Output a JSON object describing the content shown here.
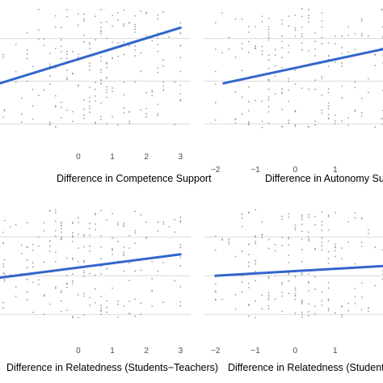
{
  "figure": {
    "background": "#ffffff",
    "grid_color": "#d9d9d9",
    "point_color": "#9e9e9e",
    "line_color": "#3366cc"
  },
  "chart_data": [
    {
      "type": "scatter",
      "id": "competence",
      "xlabel": "Difference in Competence Support",
      "xlim": [
        -2.3,
        3.3
      ],
      "ylim": [
        -1.6,
        1.9
      ],
      "x_ticks": [
        0,
        1,
        2,
        3
      ],
      "x_tick_labels": [
        "0",
        "1",
        "2",
        "3"
      ],
      "y_gridlines": [
        -1,
        0,
        1
      ],
      "grid": true,
      "fit_line": {
        "x": [
          -2.3,
          3.0
        ],
        "y": [
          -0.05,
          1.25
        ]
      },
      "points": {
        "x_spread": [
          -2.2,
          3.0
        ],
        "center": 0.5,
        "y_spread": [
          -1.1,
          1.7
        ],
        "count": 220,
        "seed": 11
      }
    },
    {
      "type": "scatter",
      "id": "autonomy",
      "xlabel": "Difference in Autonomy Support",
      "xlim": [
        -2.3,
        2.2
      ],
      "ylim": [
        -1.6,
        1.9
      ],
      "x_ticks": [
        -2,
        -1,
        0,
        1
      ],
      "x_tick_labels": [
        "−2",
        "−1",
        "0",
        "1"
      ],
      "y_gridlines": [
        -1,
        0,
        1
      ],
      "grid": true,
      "fit_line": {
        "x": [
          -1.8,
          2.2
        ],
        "y": [
          -0.05,
          0.75
        ]
      },
      "points": {
        "x_spread": [
          -2.0,
          2.2
        ],
        "center": 0.2,
        "y_spread": [
          -1.1,
          1.7
        ],
        "count": 210,
        "seed": 23
      }
    },
    {
      "type": "scatter",
      "id": "relatedness-students",
      "xlabel": "Difference in Relatedness (Students−Teachers)",
      "xlim": [
        -2.3,
        3.3
      ],
      "ylim": [
        -1.6,
        1.9
      ],
      "x_ticks": [
        0,
        1,
        2,
        3
      ],
      "x_tick_labels": [
        "0",
        "1",
        "2",
        "3"
      ],
      "y_gridlines": [
        -1,
        0,
        1
      ],
      "grid": true,
      "fit_line": {
        "x": [
          -2.3,
          3.0
        ],
        "y": [
          -0.05,
          0.55
        ]
      },
      "points": {
        "x_spread": [
          -2.2,
          3.0
        ],
        "center": 0.3,
        "y_spread": [
          -1.1,
          1.7
        ],
        "count": 220,
        "seed": 37
      }
    },
    {
      "type": "scatter",
      "id": "relatedness-teachers",
      "xlabel": "Difference in Relatedness (Students−Teachers)",
      "xlim": [
        -2.3,
        2.2
      ],
      "ylim": [
        -1.6,
        1.9
      ],
      "x_ticks": [
        -2,
        -1,
        0,
        1
      ],
      "x_tick_labels": [
        "−2",
        "−1",
        "0",
        "1"
      ],
      "y_gridlines": [
        -1,
        0,
        1
      ],
      "grid": true,
      "fit_line": {
        "x": [
          -2.0,
          2.2
        ],
        "y": [
          0.0,
          0.25
        ]
      },
      "points": {
        "x_spread": [
          -2.0,
          2.2
        ],
        "center": 0.1,
        "y_spread": [
          -1.1,
          1.7
        ],
        "count": 210,
        "seed": 53
      }
    }
  ]
}
